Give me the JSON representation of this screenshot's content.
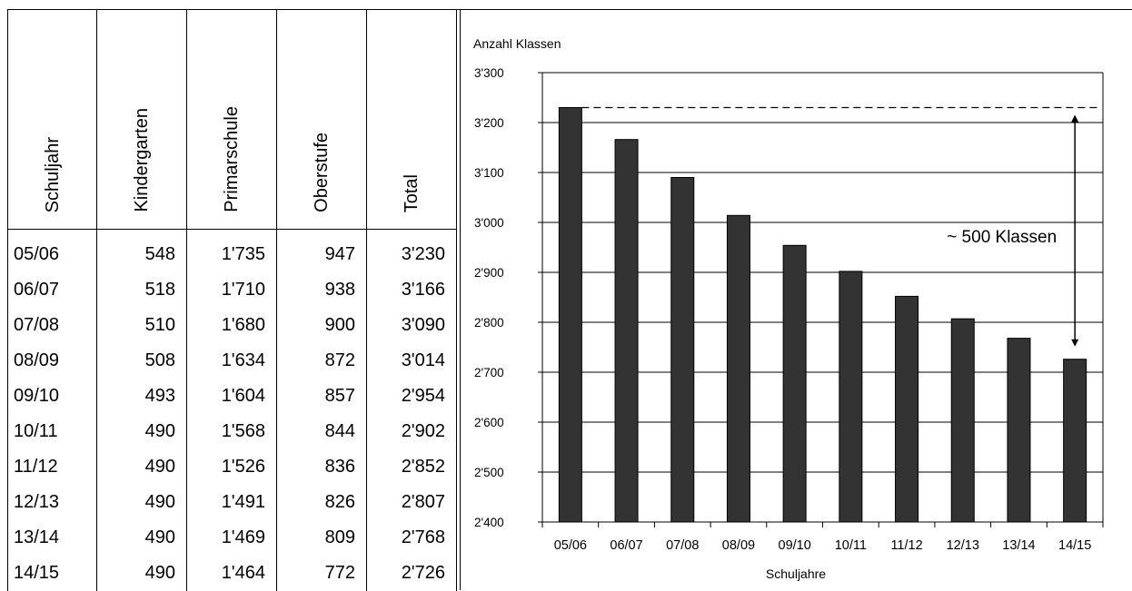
{
  "table": {
    "headers": [
      "Schuljahr",
      "Kindergarten",
      "Primarschule",
      "Oberstufe",
      "Total"
    ],
    "rows": [
      [
        "05/06",
        "548",
        "1'735",
        "947",
        "3'230"
      ],
      [
        "06/07",
        "518",
        "1'710",
        "938",
        "3'166"
      ],
      [
        "07/08",
        "510",
        "1'680",
        "900",
        "3'090"
      ],
      [
        "08/09",
        "508",
        "1'634",
        "872",
        "3'014"
      ],
      [
        "09/10",
        "493",
        "1'604",
        "857",
        "2'954"
      ],
      [
        "10/11",
        "490",
        "1'568",
        "844",
        "2'902"
      ],
      [
        "11/12",
        "490",
        "1'526",
        "836",
        "2'852"
      ],
      [
        "12/13",
        "490",
        "1'491",
        "826",
        "2'807"
      ],
      [
        "13/14",
        "490",
        "1'469",
        "809",
        "2'768"
      ],
      [
        "14/15",
        "490",
        "1'464",
        "772",
        "2'726"
      ]
    ]
  },
  "chart_data": {
    "type": "bar",
    "title": "",
    "ylabel": "Anzahl Klassen",
    "xlabel": "Schuljahre",
    "categories": [
      "05/06",
      "06/07",
      "07/08",
      "08/09",
      "09/10",
      "10/11",
      "11/12",
      "12/13",
      "13/14",
      "14/15"
    ],
    "values": [
      3230,
      3166,
      3090,
      3014,
      2954,
      2902,
      2852,
      2807,
      2768,
      2726
    ],
    "ylim": [
      2400,
      3300
    ],
    "yticks": [
      2400,
      2500,
      2600,
      2700,
      2800,
      2900,
      3000,
      3100,
      3200,
      3300
    ],
    "ytick_labels": [
      "2'400",
      "2'500",
      "2'600",
      "2'700",
      "2'800",
      "2'900",
      "3'000",
      "3'100",
      "3'200",
      "3'300"
    ],
    "grid": true,
    "bar_color": "#333333",
    "reference_line_value": 3230,
    "annotation": "~ 500 Klassen"
  }
}
